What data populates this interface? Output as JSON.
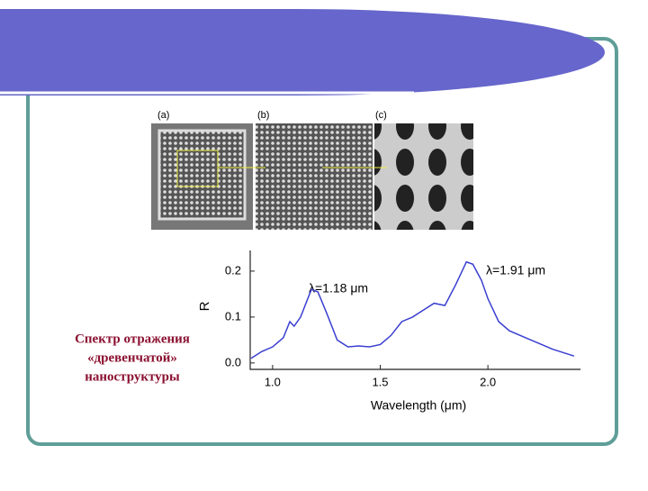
{
  "panels": [
    "(a)",
    "(b)",
    "(c)"
  ],
  "caption": [
    "Спектр отражения",
    "«древенчатой»",
    "наноструктуры"
  ],
  "chart_data": {
    "type": "line",
    "x_label": "Wavelength (μm)",
    "y_label": "R",
    "annotations": [
      "λ=1.18 μm",
      "λ=1.91 μm"
    ],
    "x": [
      0.9,
      0.95,
      1.0,
      1.05,
      1.08,
      1.1,
      1.13,
      1.18,
      1.21,
      1.25,
      1.3,
      1.35,
      1.4,
      1.45,
      1.5,
      1.55,
      1.6,
      1.65,
      1.7,
      1.75,
      1.8,
      1.85,
      1.9,
      1.93,
      1.97,
      2.0,
      2.05,
      2.1,
      2.2,
      2.3,
      2.4
    ],
    "series": [
      {
        "name": "R",
        "color": "#3a3fd0",
        "values": [
          0.01,
          0.025,
          0.035,
          0.055,
          0.09,
          0.08,
          0.1,
          0.16,
          0.155,
          0.11,
          0.05,
          0.035,
          0.037,
          0.035,
          0.04,
          0.06,
          0.09,
          0.1,
          0.115,
          0.13,
          0.125,
          0.17,
          0.22,
          0.215,
          0.18,
          0.14,
          0.09,
          0.07,
          0.05,
          0.03,
          0.015
        ]
      }
    ],
    "xlim": [
      0.896,
      2.43
    ],
    "ylim": [
      -0.014,
      0.245
    ],
    "xticks": [
      {
        "value": 1.0,
        "label": "1.0"
      },
      {
        "value": 1.5,
        "label": "1.5"
      },
      {
        "value": 2.0,
        "label": "2.0"
      }
    ],
    "yticks": [
      {
        "value": 0,
        "label": "0.0"
      },
      0.1,
      0.2
    ]
  }
}
